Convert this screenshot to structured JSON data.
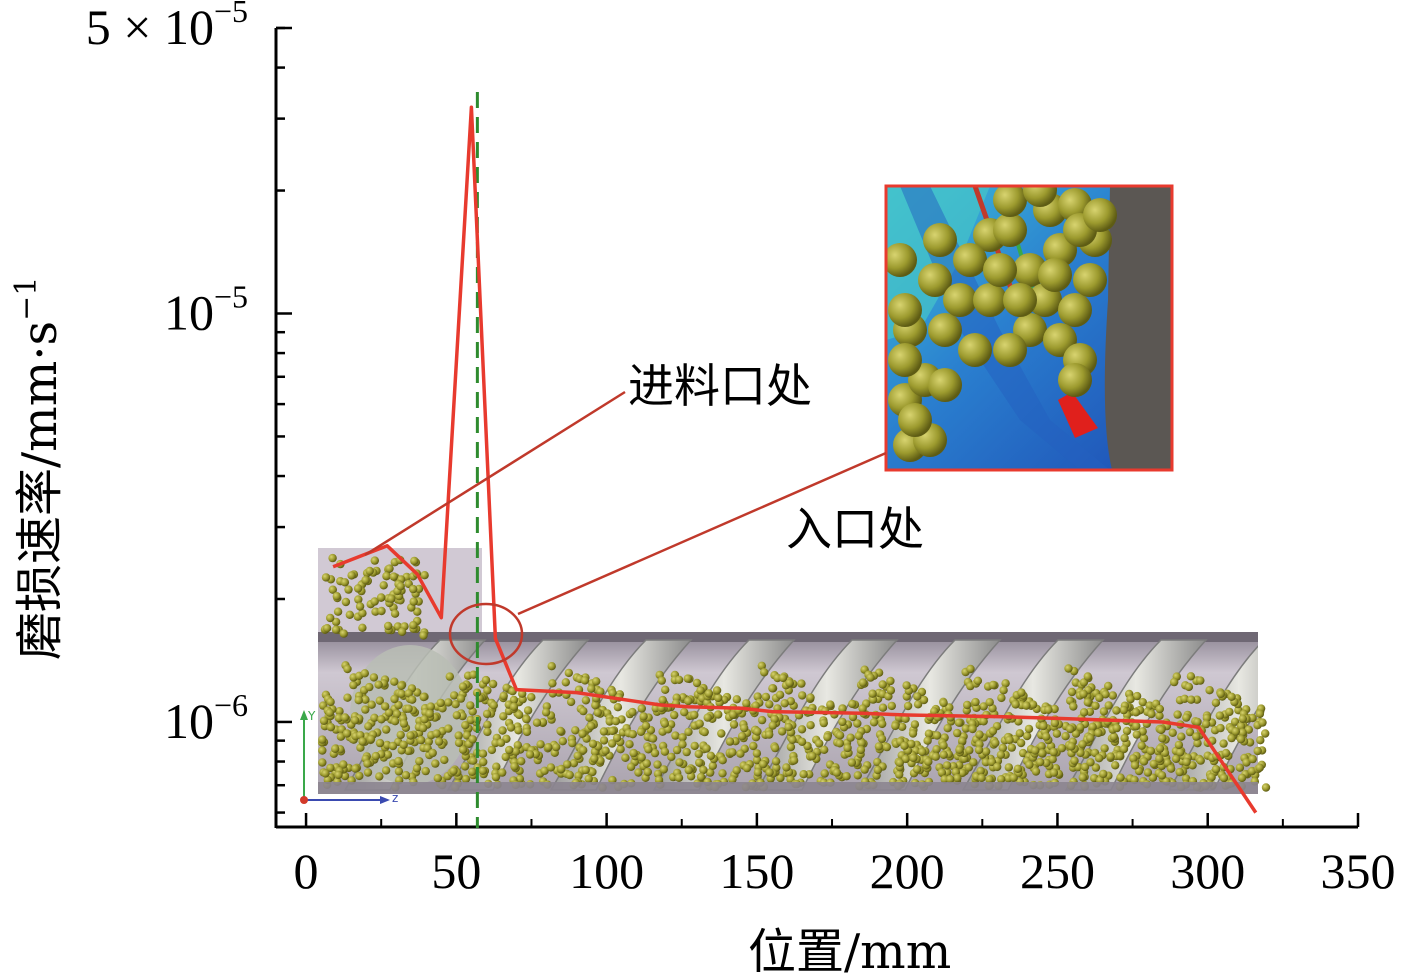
{
  "chart_data": {
    "type": "line",
    "xlabel": "位置/mm",
    "ylabel": "磨损速率/mm·s",
    "ylabel_sup": "−1",
    "y_scale": "log",
    "xlim": [
      -10,
      350
    ],
    "ylim": [
      5.5e-07,
      5e-05
    ],
    "x_ticks": [
      0,
      50,
      100,
      150,
      200,
      250,
      300,
      350
    ],
    "y_tick_labels": [
      {
        "value": 5e-05,
        "base": "5 × 10",
        "exp": "−5"
      },
      {
        "value": 1e-05,
        "base": "10",
        "exp": "−5"
      },
      {
        "value": 1e-06,
        "base": "10",
        "exp": "−6"
      }
    ],
    "series": [
      {
        "color": "#e83a2e",
        "x": [
          9,
          27,
          37,
          45,
          55,
          63,
          70,
          90,
          118,
          127,
          145,
          155,
          185,
          200,
          232,
          250,
          285,
          297,
          316
        ],
        "y": [
          2.4e-06,
          2.7e-06,
          2.3e-06,
          1.8e-06,
          3.2e-05,
          1.6e-06,
          1.2e-06,
          1.18e-06,
          1.1e-06,
          1.09e-06,
          1.08e-06,
          1.06e-06,
          1.05e-06,
          1.04e-06,
          1.03e-06,
          1.02e-06,
          1e-06,
          9.7e-07,
          6e-07
        ]
      }
    ],
    "reference_line": {
      "x": 57,
      "color": "#2e8b2e",
      "style": "dashed"
    },
    "annotations": [
      {
        "text": "进料口处"
      },
      {
        "text": "入口处"
      }
    ]
  }
}
